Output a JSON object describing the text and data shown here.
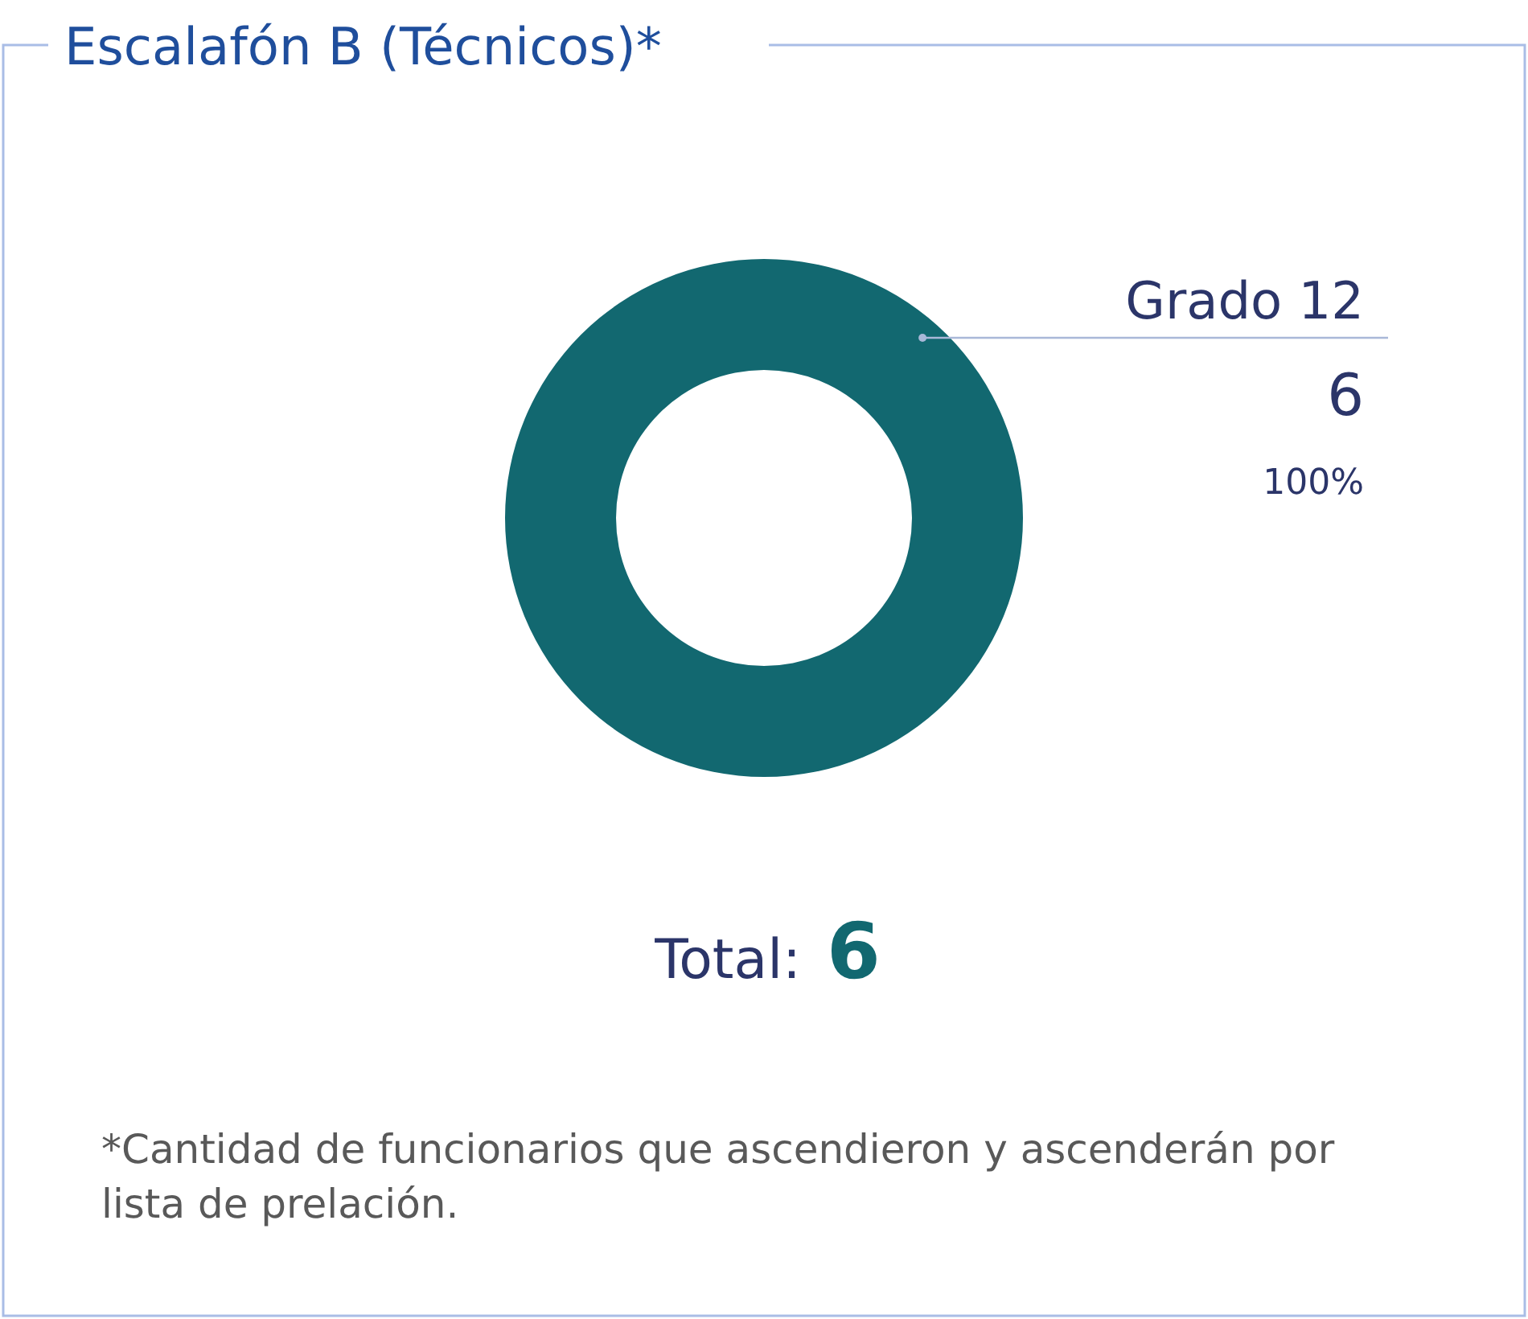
{
  "chart_data": {
    "type": "donut",
    "title": "Escalafón B (Técnicos)*",
    "categories": [
      "Grado 12"
    ],
    "values": [
      6
    ],
    "colors": [
      "#126870"
    ],
    "data_labels": true,
    "totals": [
      "6"
    ],
    "annotations": [
      {
        "text": "100%",
        "x": "Grado 12"
      },
      "Total:",
      "*Cantidad de funcionarios que ascendieron y ascenderán por lista de prelación."
    ]
  }
}
